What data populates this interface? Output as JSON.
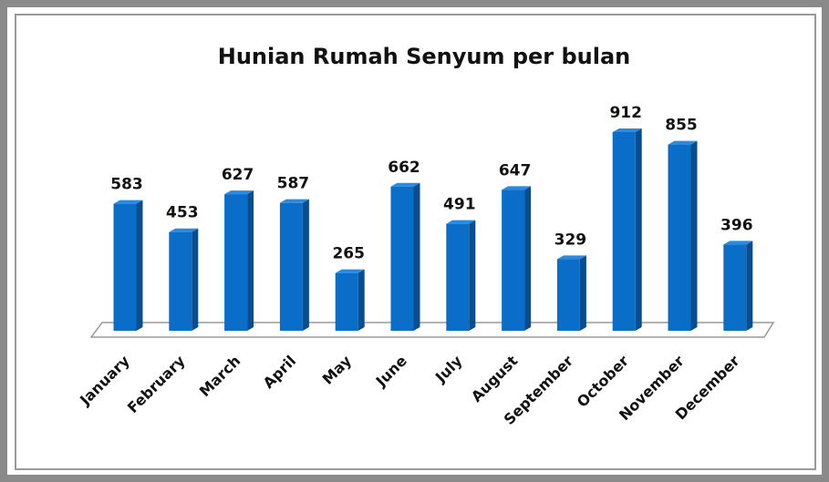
{
  "chart_data": {
    "type": "bar3d",
    "title": "Hunian Rumah Senyum per bulan",
    "categories": [
      "January",
      "February",
      "March",
      "April",
      "May",
      "June",
      "July",
      "August",
      "September",
      "October",
      "November",
      "December"
    ],
    "values": [
      583,
      453,
      627,
      587,
      265,
      662,
      491,
      647,
      329,
      912,
      855,
      396
    ],
    "color": "#0a6ec8"
  }
}
